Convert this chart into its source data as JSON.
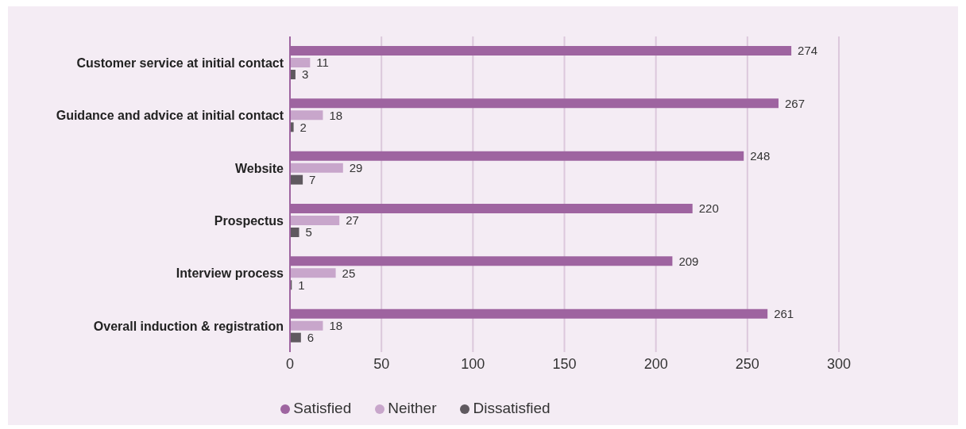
{
  "chart_data": {
    "type": "bar",
    "orientation": "horizontal",
    "categories": [
      "Customer service at initial contact",
      "Guidance and advice at initial contact",
      "Website",
      "Prospectus",
      "Interview process",
      "Overall induction & registration"
    ],
    "series": [
      {
        "name": "Satisfied",
        "color": "#9e64a0",
        "values": [
          274,
          267,
          248,
          220,
          209,
          261
        ]
      },
      {
        "name": "Neither",
        "color": "#c8a6cb",
        "values": [
          11,
          18,
          29,
          27,
          25,
          18
        ]
      },
      {
        "name": "Dissatisfied",
        "color": "#5f595f",
        "values": [
          3,
          2,
          7,
          5,
          1,
          6
        ]
      }
    ],
    "xlim": [
      0,
      300
    ],
    "xticks": [
      0,
      50,
      100,
      150,
      200,
      250,
      300
    ],
    "grid": "x",
    "legend": "bottom",
    "data_labels": true
  }
}
